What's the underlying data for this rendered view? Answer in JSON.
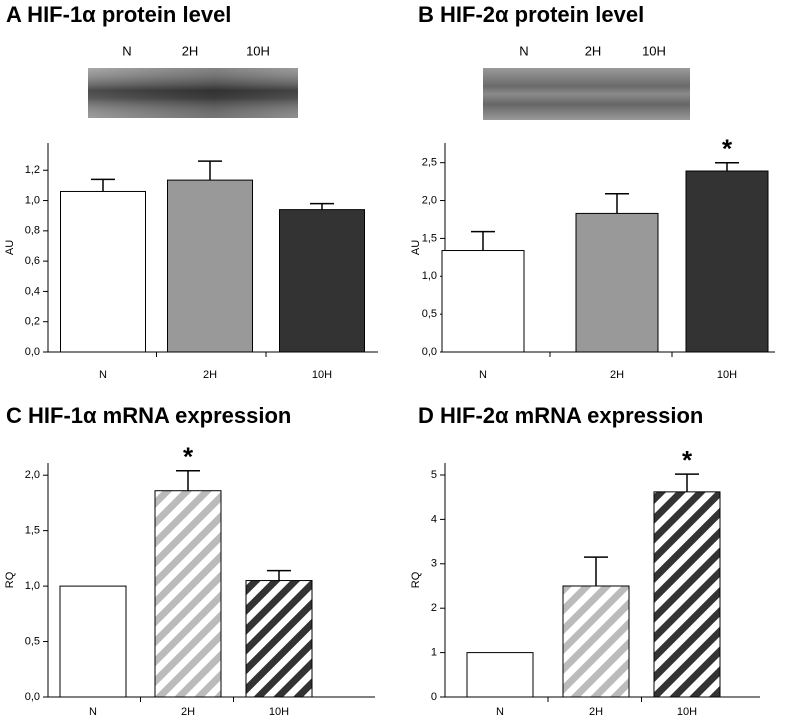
{
  "chart_data": [
    {
      "type": "bar",
      "title": "A  HIF-1α  protein level",
      "blot_labels": [
        "N",
        "2H",
        "10H"
      ],
      "ylabel": "AU",
      "categories": [
        "N",
        "2H",
        "10H"
      ],
      "values": [
        1.06,
        1.135,
        0.94
      ],
      "error": [
        0.08,
        0.125,
        0.04
      ],
      "colors": [
        "#ffffff",
        "#999999",
        "#333333"
      ],
      "hatch": [
        false,
        false,
        false
      ],
      "ylim": [
        0,
        1.38
      ],
      "yticks": [
        {
          "value": 0,
          "label": "0,0"
        },
        {
          "value": 0.2,
          "label": "0,2"
        },
        {
          "value": 0.4,
          "label": "0,4"
        },
        {
          "value": 0.6,
          "label": "0,6"
        },
        {
          "value": 0.8,
          "label": "0,8"
        },
        {
          "value": 1.0,
          "label": "1,0"
        },
        {
          "value": 1.2,
          "label": "1,2"
        }
      ],
      "annotations": []
    },
    {
      "type": "bar",
      "title": "B  HIF-2α  protein level",
      "blot_labels": [
        "N",
        "2H",
        "10H"
      ],
      "ylabel": "AU",
      "categories": [
        "N",
        "2H",
        "10H"
      ],
      "values": [
        1.34,
        1.83,
        2.39
      ],
      "error": [
        0.25,
        0.26,
        0.11
      ],
      "colors": [
        "#ffffff",
        "#999999",
        "#333333"
      ],
      "hatch": [
        false,
        false,
        false
      ],
      "ylim": [
        0,
        2.76
      ],
      "yticks": [
        {
          "value": 0,
          "label": "0,0"
        },
        {
          "value": 0.5,
          "label": "0,5"
        },
        {
          "value": 1.0,
          "label": "1,0"
        },
        {
          "value": 1.5,
          "label": "1,5"
        },
        {
          "value": 2.0,
          "label": "2,0"
        },
        {
          "value": 2.5,
          "label": "2,5"
        }
      ],
      "annotations": [
        {
          "text": "*",
          "x": "10H"
        }
      ]
    },
    {
      "type": "bar",
      "title": "C HIF-1α  mRNA expression",
      "ylabel": "RQ",
      "categories": [
        "N",
        "2H",
        "10H"
      ],
      "values": [
        1.0,
        1.86,
        1.05
      ],
      "error": [
        0,
        0.18,
        0.09
      ],
      "colors": [
        "#ffffff",
        "#bbbbbb",
        "#333333"
      ],
      "hatch": [
        false,
        true,
        true
      ],
      "ylim": [
        0,
        2.11
      ],
      "yticks": [
        {
          "value": 0,
          "label": "0,0"
        },
        {
          "value": 0.5,
          "label": "0,5"
        },
        {
          "value": 1.0,
          "label": "1,0"
        },
        {
          "value": 1.5,
          "label": "1,5"
        },
        {
          "value": 2.0,
          "label": "2,0"
        }
      ],
      "annotations": [
        {
          "text": "*",
          "x": "2H"
        }
      ]
    },
    {
      "type": "bar",
      "title": "D HIF-2α  mRNA expression",
      "ylabel": "RQ",
      "categories": [
        "N",
        "2H",
        "10H"
      ],
      "values": [
        1.0,
        2.5,
        4.62
      ],
      "error": [
        0,
        0.65,
        0.4
      ],
      "colors": [
        "#ffffff",
        "#bbbbbb",
        "#333333"
      ],
      "hatch": [
        false,
        true,
        true
      ],
      "ylim": [
        0,
        5.27
      ],
      "yticks": [
        0,
        1,
        2,
        3,
        4,
        5
      ],
      "annotations": [
        {
          "text": "*",
          "x": "10H"
        }
      ]
    }
  ]
}
